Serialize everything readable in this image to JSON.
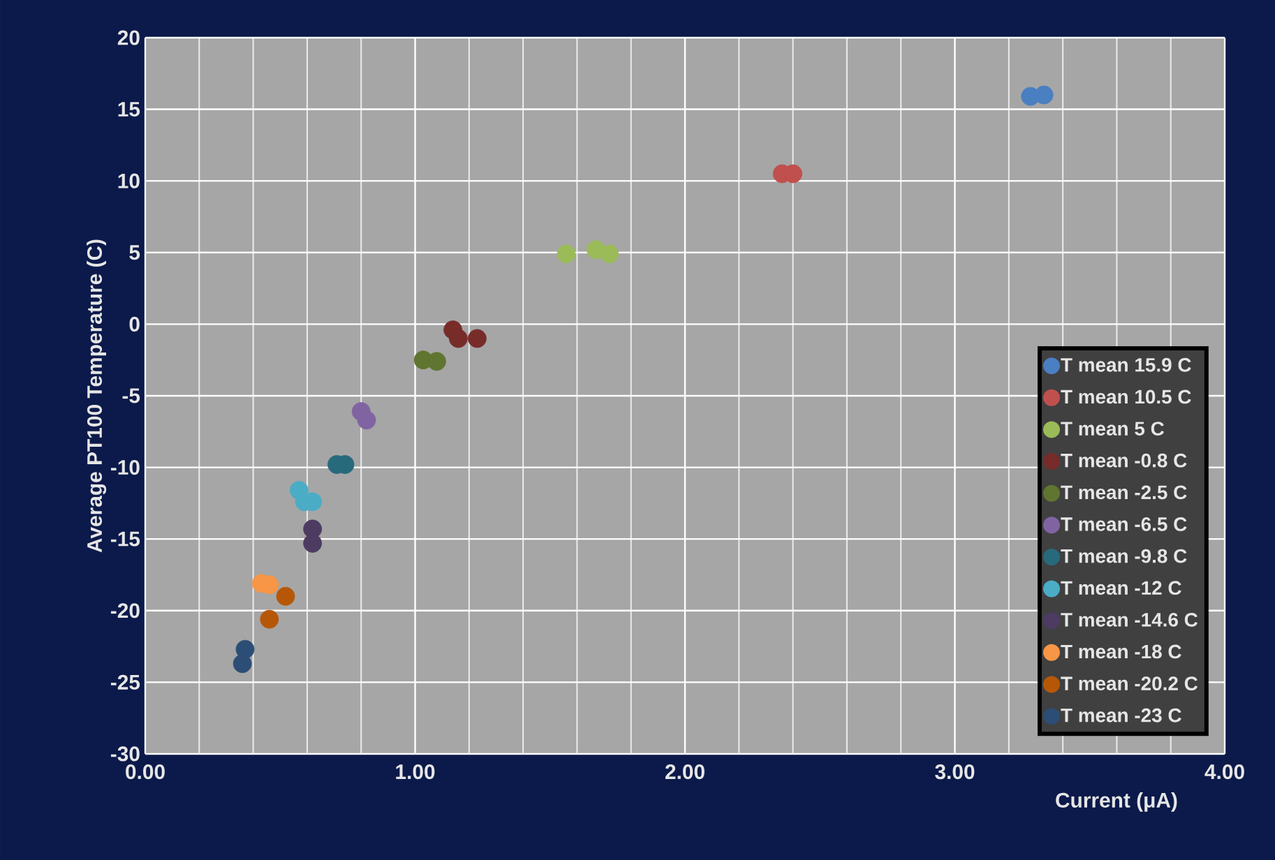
{
  "chart_data": {
    "type": "scatter",
    "xlabel": "Current (μA)",
    "ylabel": "Average PT100 Temperature (C)",
    "xlim": [
      0,
      4
    ],
    "ylim": [
      -30,
      20
    ],
    "xticks": [
      {
        "value": 0,
        "label": "0.00"
      },
      {
        "value": 1,
        "label": "1.00"
      },
      {
        "value": 2,
        "label": "2.00"
      },
      {
        "value": 3,
        "label": "3.00"
      },
      {
        "value": 4,
        "label": "4.00"
      }
    ],
    "yticks": [
      -30,
      -25,
      -20,
      -15,
      -10,
      -5,
      0,
      5,
      10,
      15,
      20
    ],
    "grid": true,
    "legend": "right",
    "marker": "circle",
    "series": [
      {
        "name": "T mean 15.9 C",
        "color": "#4a7fc1",
        "x": [
          3.28,
          3.33
        ],
        "values": [
          15.9,
          16.0
        ]
      },
      {
        "name": "T mean 10.5 C",
        "color": "#c0504d",
        "x": [
          2.36,
          2.4
        ],
        "values": [
          10.5,
          10.5
        ]
      },
      {
        "name": "T mean 5 C",
        "color": "#9bbb59",
        "x": [
          1.56,
          1.67,
          1.72
        ],
        "values": [
          4.9,
          5.2,
          4.9
        ]
      },
      {
        "name": "T mean -0.8 C",
        "color": "#772c2a",
        "x": [
          1.14,
          1.16,
          1.23
        ],
        "values": [
          -0.4,
          -1.0,
          -1.0
        ]
      },
      {
        "name": "T mean -2.5 C",
        "color": "#5f7530",
        "x": [
          1.03,
          1.08
        ],
        "values": [
          -2.5,
          -2.6
        ]
      },
      {
        "name": "T mean -6.5 C",
        "color": "#8064a2",
        "x": [
          0.8,
          0.82
        ],
        "values": [
          -6.1,
          -6.7
        ]
      },
      {
        "name": "T mean -9.8 C",
        "color": "#276a7c",
        "x": [
          0.71,
          0.74
        ],
        "values": [
          -9.8,
          -9.8
        ]
      },
      {
        "name": "T mean -12 C",
        "color": "#4bacc6",
        "x": [
          0.57,
          0.59,
          0.62
        ],
        "values": [
          -11.6,
          -12.4,
          -12.4
        ]
      },
      {
        "name": "T mean -14.6 C",
        "color": "#4d3b62",
        "x": [
          0.62,
          0.62
        ],
        "values": [
          -14.3,
          -15.3
        ]
      },
      {
        "name": "T mean -18 C",
        "color": "#f79646",
        "x": [
          0.43,
          0.46
        ],
        "values": [
          -18.1,
          -18.2
        ]
      },
      {
        "name": "T mean -20.2 C",
        "color": "#b65708",
        "x": [
          0.52,
          0.46
        ],
        "values": [
          -19.0,
          -20.6
        ]
      },
      {
        "name": "T mean -23 C",
        "color": "#2c4d75",
        "x": [
          0.37,
          0.36
        ],
        "values": [
          -22.7,
          -23.7
        ]
      }
    ]
  }
}
